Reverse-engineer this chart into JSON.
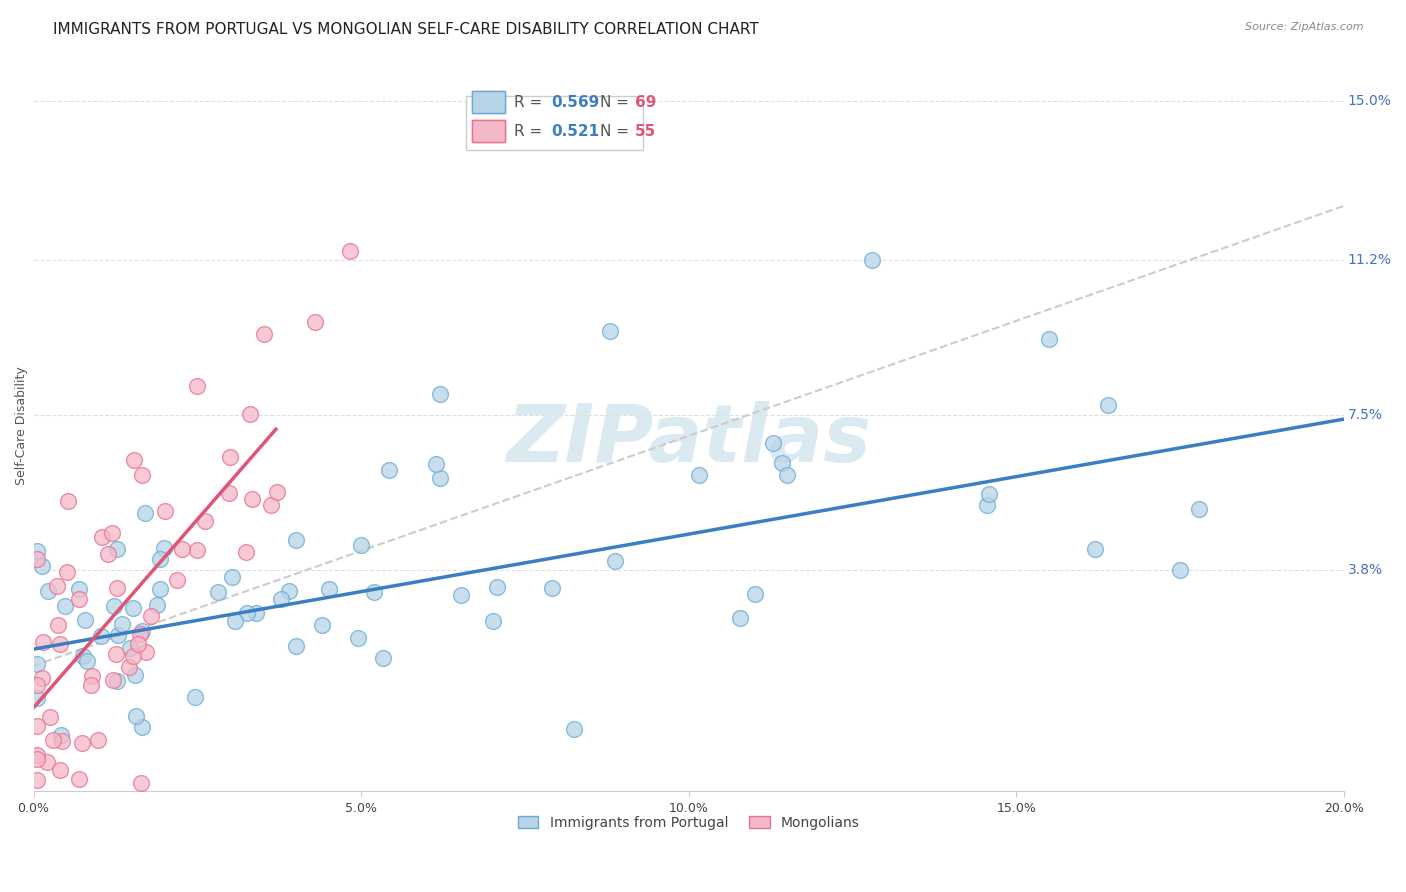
{
  "title": "IMMIGRANTS FROM PORTUGAL VS MONGOLIAN SELF-CARE DISABILITY CORRELATION CHART",
  "source": "Source: ZipAtlas.com",
  "ylabel": "Self-Care Disability",
  "right_yticks": [
    0.038,
    0.075,
    0.112,
    0.15
  ],
  "right_yticklabels": [
    "3.8%",
    "7.5%",
    "11.2%",
    "15.0%"
  ],
  "xlim": [
    0.0,
    0.2
  ],
  "ylim": [
    -0.015,
    0.16
  ],
  "watermark": "ZIPatlas",
  "legend_entries": [
    {
      "label": "Immigrants from Portugal",
      "R": "0.569",
      "N": "69",
      "color": "#a8cce4"
    },
    {
      "label": "Mongolians",
      "R": "0.521",
      "N": "55",
      "color": "#f4afc0"
    }
  ],
  "portugal_line_color": "#3a7fc1",
  "mongolia_line_color": "#e05575",
  "dashed_line_color": "#cccccc",
  "dot_blue_face": "#b8d4e8",
  "dot_blue_edge": "#6aaad4",
  "dot_pink_face": "#f4b8c8",
  "dot_pink_edge": "#e87090",
  "grid_color": "#e0e0e0",
  "background_color": "#ffffff",
  "title_fontsize": 11,
  "axis_label_fontsize": 9,
  "tick_fontsize": 9,
  "legend_R_blue": "#3a7fc1",
  "legend_N_blue": "#e05575",
  "legend_R_pink": "#3a7fc1",
  "legend_N_pink": "#e05575",
  "portugal_trend": [
    0.019,
    0.275
  ],
  "mongolia_trend": [
    0.005,
    1.8
  ],
  "dashed_trend": [
    0.015,
    0.55
  ]
}
